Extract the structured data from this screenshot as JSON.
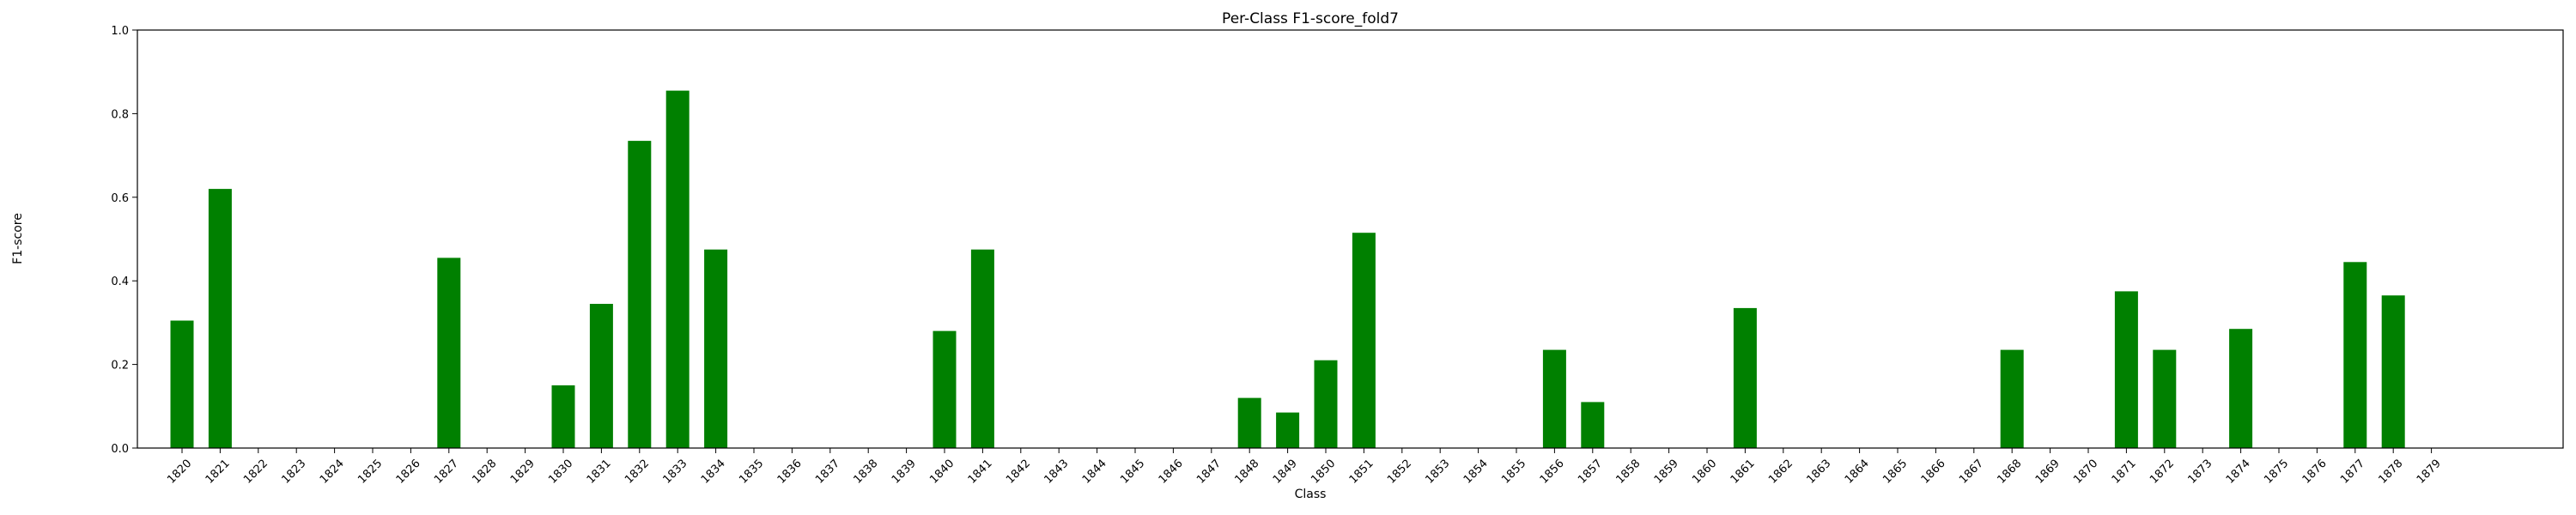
{
  "chart_data": {
    "type": "bar",
    "title": "Per-Class F1-score_fold7",
    "xlabel": "Class",
    "ylabel": "F1-score",
    "ylim": [
      0,
      1.0
    ],
    "yticks": [
      "0.0",
      "0.2",
      "0.4",
      "0.6",
      "0.8",
      "1.0"
    ],
    "bar_color": "#008000",
    "categories": [
      "1820",
      "1821",
      "1822",
      "1823",
      "1824",
      "1825",
      "1826",
      "1827",
      "1828",
      "1829",
      "1830",
      "1831",
      "1832",
      "1833",
      "1834",
      "1835",
      "1836",
      "1837",
      "1838",
      "1839",
      "1840",
      "1841",
      "1842",
      "1843",
      "1844",
      "1845",
      "1846",
      "1847",
      "1848",
      "1849",
      "1850",
      "1851",
      "1852",
      "1853",
      "1854",
      "1855",
      "1856",
      "1857",
      "1858",
      "1859",
      "1860",
      "1861",
      "1862",
      "1863",
      "1864",
      "1865",
      "1866",
      "1867",
      "1868",
      "1869",
      "1870",
      "1871",
      "1872",
      "1873",
      "1874",
      "1875",
      "1876",
      "1877",
      "1878",
      "1879"
    ],
    "values": [
      0.305,
      0.62,
      0,
      0,
      0,
      0,
      0,
      0.455,
      0,
      0,
      0.15,
      0.345,
      0.735,
      0.855,
      0.475,
      0,
      0,
      0,
      0,
      0,
      0.28,
      0.475,
      0,
      0,
      0,
      0,
      0,
      0,
      0.12,
      0.085,
      0.21,
      0.515,
      0,
      0,
      0,
      0,
      0.235,
      0.11,
      0,
      0,
      0,
      0.335,
      0,
      0,
      0,
      0,
      0,
      0,
      0.235,
      0,
      0,
      0.375,
      0.235,
      0,
      0.285,
      0,
      0,
      0.445,
      0.365,
      0
    ]
  }
}
